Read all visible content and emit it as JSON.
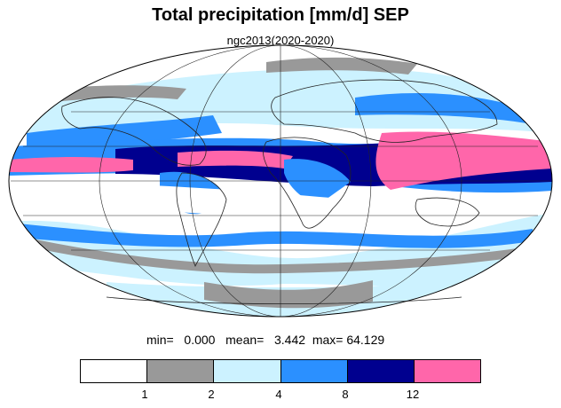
{
  "title": "Total precipitation [mm/d] SEP",
  "subtitle": "ngc2013(2020-2020)",
  "stats": {
    "min_label": "min=",
    "min_value": "0.000",
    "mean_label": "mean=",
    "mean_value": "3.442",
    "max_label": "max=",
    "max_value": "64.129"
  },
  "projection": "mollweide",
  "colorbar": {
    "colors": [
      "#ffffff",
      "#999999",
      "#ccf2ff",
      "#2b90ff",
      "#00008f",
      "#ff66aa"
    ],
    "ticks": [
      "1",
      "2",
      "4",
      "8",
      "12"
    ]
  }
}
